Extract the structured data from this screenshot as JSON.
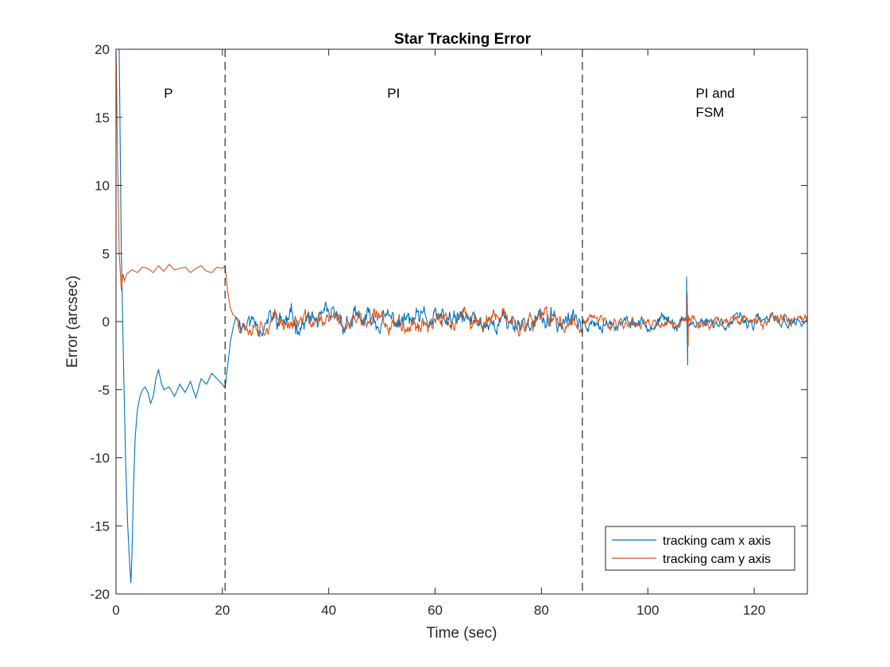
{
  "chart_data": {
    "type": "line",
    "title": "Star Tracking Error",
    "xlabel": "Time (sec)",
    "ylabel": "Error (arcsec)",
    "xlim": [
      0,
      130
    ],
    "ylim": [
      -20,
      20
    ],
    "xticks": [
      0,
      20,
      40,
      60,
      80,
      100,
      120
    ],
    "yticks": [
      -20,
      -15,
      -10,
      -5,
      0,
      5,
      10,
      15,
      20
    ],
    "grid": false,
    "legend_position": "bottom-right",
    "vlines": [
      20.5,
      87.7
    ],
    "phase_labels": [
      {
        "lines": [
          "P"
        ],
        "x": 9,
        "y": 16.8
      },
      {
        "lines": [
          "PI"
        ],
        "x": 51,
        "y": 16.8
      },
      {
        "lines": [
          "PI and",
          "FSM"
        ],
        "x": 109,
        "y": 16.8
      }
    ],
    "series": [
      {
        "name": "tracking cam x axis",
        "color": "#0072BD",
        "x": [
          0,
          0.3,
          0.6,
          1.0,
          1.4,
          1.8,
          2.2,
          2.6,
          2.8,
          3.0,
          3.3,
          3.6,
          4.0,
          4.5,
          5.0,
          5.5,
          6,
          6.5,
          7,
          7.5,
          8,
          8.5,
          9,
          10,
          11,
          12,
          13,
          14,
          15,
          16,
          17,
          18,
          19,
          20,
          20.5,
          21,
          21.5,
          22,
          22.5,
          23
        ],
        "y": [
          20,
          20,
          20,
          5,
          -3,
          -10,
          -15,
          -18,
          -19.2,
          -17,
          -12,
          -8.5,
          -6.5,
          -5.5,
          -5.0,
          -4.8,
          -5.2,
          -6.0,
          -5.5,
          -4.2,
          -3.5,
          -4.5,
          -5.0,
          -4.8,
          -5.5,
          -4.6,
          -5.2,
          -4.4,
          -5.6,
          -4.2,
          -4.6,
          -3.8,
          -4.2,
          -4.6,
          -4.9,
          -3.2,
          -1.5,
          -0.5,
          0.3,
          0
        ]
      },
      {
        "name": "tracking cam y axis",
        "color": "#D95319",
        "x": [
          0,
          0.3,
          0.6,
          1.0,
          1.3,
          1.6,
          2,
          3,
          4,
          5,
          6,
          7,
          8,
          9,
          10,
          11,
          12,
          13,
          14,
          15,
          16,
          17,
          18,
          19,
          20,
          20.5,
          21,
          21.5,
          22,
          23
        ],
        "y": [
          20,
          12,
          5,
          2.3,
          3.5,
          3.0,
          3.5,
          3.8,
          3.6,
          4.0,
          3.9,
          3.6,
          4.1,
          3.7,
          4.2,
          3.8,
          3.9,
          4.0,
          3.6,
          3.9,
          4.1,
          3.7,
          3.6,
          4.0,
          3.9,
          4.1,
          2.2,
          1.0,
          0.5,
          0.2
        ]
      }
    ],
    "noise_segments": [
      {
        "series": 0,
        "start": 23,
        "end": 87.7,
        "amplitude": 0.85,
        "seed": 11
      },
      {
        "series": 0,
        "start": 87.7,
        "end": 130,
        "amplitude": 0.5,
        "seed": 23
      },
      {
        "series": 1,
        "start": 23,
        "end": 87.7,
        "amplitude": 0.7,
        "seed": 37
      },
      {
        "series": 1,
        "start": 87.7,
        "end": 130,
        "amplitude": 0.45,
        "seed": 41
      }
    ],
    "spikes": [
      {
        "series": 0,
        "x": 107.3,
        "y": 3.3
      },
      {
        "series": 0,
        "x": 107.5,
        "y": -3.2
      },
      {
        "series": 1,
        "x": 107.4,
        "y": 2.1
      },
      {
        "series": 1,
        "x": 107.6,
        "y": -1.8
      }
    ]
  }
}
